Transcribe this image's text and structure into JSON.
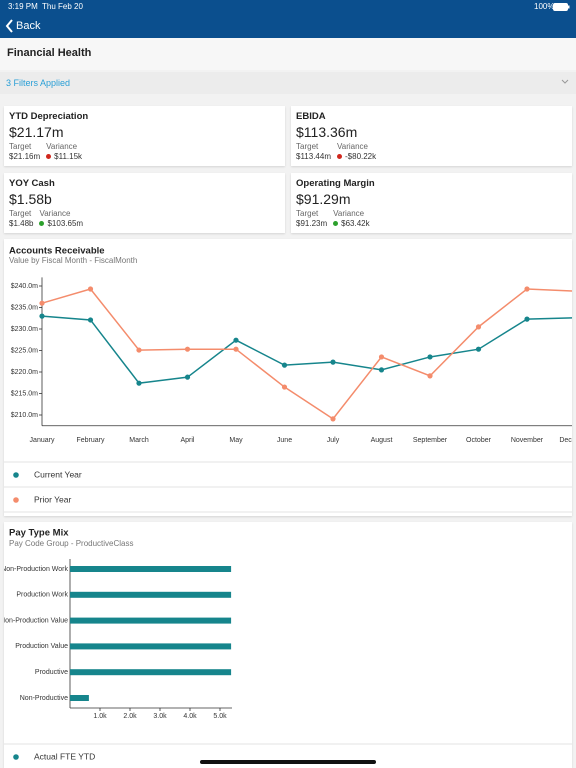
{
  "status_bar": {
    "time": "3:19 PM",
    "date": "Thu Feb 20",
    "battery": "100%"
  },
  "nav": {
    "back": "Back"
  },
  "header": {
    "title": "Financial Health"
  },
  "filters": {
    "label": "3 Filters Applied"
  },
  "kpis": [
    {
      "title": "YTD Depreciation",
      "value": "$21.17m",
      "target_label": "Target",
      "target": "$21.16m",
      "variance_label": "Variance",
      "variance": "$11.15k",
      "variance_color": "#d0271d"
    },
    {
      "title": "EBIDA",
      "value": "$113.36m",
      "target_label": "Target",
      "target": "$113.44m",
      "variance_label": "Variance",
      "variance": "-$80.22k",
      "variance_color": "#d0271d"
    },
    {
      "title": "YOY Cash",
      "value": "$1.58b",
      "target_label": "Target",
      "target": "$1.48b",
      "variance_label": "Variance",
      "variance": "$103.65m",
      "variance_color": "#2ca02c"
    },
    {
      "title": "Operating Margin",
      "value": "$91.29m",
      "target_label": "Target",
      "target": "$91.23m",
      "variance_label": "Variance",
      "variance": "$63.42k",
      "variance_color": "#2ca02c"
    }
  ],
  "chart_data": [
    {
      "type": "line",
      "title": "Accounts Receivable",
      "subtitle": "Value by Fiscal Month - FiscalMonth",
      "categories": [
        "January",
        "February",
        "March",
        "April",
        "May",
        "June",
        "July",
        "August",
        "September",
        "October",
        "November",
        "December"
      ],
      "series": [
        {
          "name": "Current Year",
          "color": "#16858c",
          "values": [
            233.0,
            232.1,
            217.4,
            218.8,
            227.4,
            221.6,
            222.3,
            220.5,
            223.5,
            225.3,
            232.3,
            232.6
          ]
        },
        {
          "name": "Prior Year",
          "color": "#f48c6c",
          "values": [
            236.0,
            239.3,
            225.1,
            225.3,
            225.3,
            216.5,
            209.1,
            223.5,
            219.1,
            230.5,
            239.3,
            238.8
          ]
        }
      ],
      "ylim": [
        207.5,
        242
      ],
      "yticks": [
        {
          "value": 210,
          "label": "$210.0m"
        },
        {
          "value": 215,
          "label": "$215.0m"
        },
        {
          "value": 220,
          "label": "$220.0m"
        },
        {
          "value": 225,
          "label": "$225.0m"
        },
        {
          "value": 230,
          "label": "$230.0m"
        },
        {
          "value": 235,
          "label": "$235.0m"
        },
        {
          "value": 240,
          "label": "$240.0m"
        }
      ],
      "legend": "bottom"
    },
    {
      "type": "hbar",
      "title": "Pay Type Mix",
      "subtitle": "Pay Code Group - ProductiveClass",
      "categories": [
        "Non-Production Work",
        "Production Work",
        "Non-Production Value",
        "Production Value",
        "Productive",
        "Non-Productive"
      ],
      "series": [
        {
          "name": "Actual FTE YTD",
          "color": "#16858c",
          "values": [
            5370,
            5370,
            5370,
            5370,
            5370,
            630
          ]
        }
      ],
      "xlim": [
        0,
        5400
      ],
      "xticks": [
        {
          "value": 1000,
          "label": "1.0k"
        },
        {
          "value": 2000,
          "label": "2.0k"
        },
        {
          "value": 3000,
          "label": "3.0k"
        },
        {
          "value": 4000,
          "label": "4.0k"
        },
        {
          "value": 5000,
          "label": "5.0k"
        }
      ],
      "legend": "bottom"
    }
  ]
}
